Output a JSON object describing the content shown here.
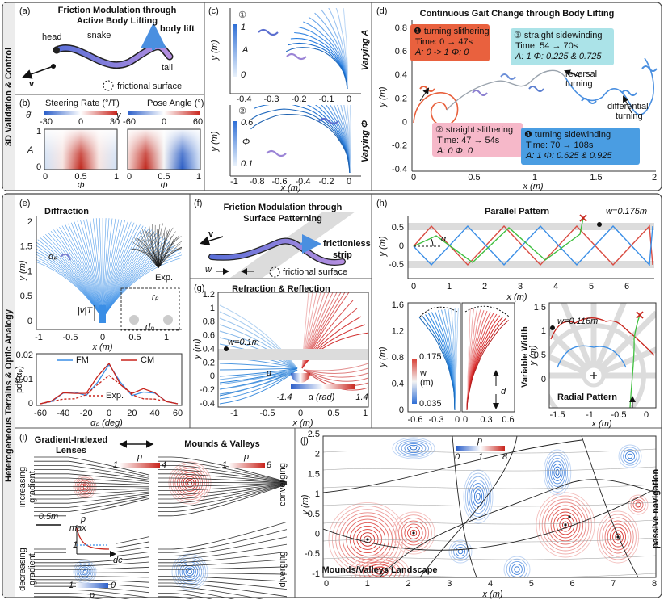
{
  "side_labels": [
    "3D Validation & Control",
    "Heterogeneous Terrains & Optic Analogy"
  ],
  "a": {
    "label": "(a)",
    "title": [
      "Friction Modulation through",
      "Active Body Lifting"
    ],
    "head": "head",
    "snake": "snake",
    "lift": "body lift",
    "tail": "tail",
    "v": "v",
    "surface": "frictional surface"
  },
  "b": {
    "label": "(b)",
    "titles": [
      "Steering Rate (°/T)",
      "Pose Angle (°)"
    ],
    "symbols": [
      "θ̇",
      "γ"
    ],
    "cbar1": [
      "-30",
      "0",
      "30"
    ],
    "cbar2": [
      "-60",
      "0",
      "60"
    ],
    "ylabel": "A",
    "yticks": [
      "1",
      "0"
    ],
    "xticks": [
      "0",
      "0.5",
      "1"
    ],
    "xlabel": "Φ"
  },
  "c": {
    "label": "(c)",
    "marks": [
      "①",
      "②"
    ],
    "cbar1": [
      "1",
      "A",
      "0"
    ],
    "cbar2": [
      "0.6",
      "Φ",
      "0.1"
    ],
    "captions": [
      "Varying A",
      "Varying Φ"
    ],
    "xticks1": [
      "-0.4",
      "-0.3",
      "-0.2",
      "-0.1",
      "0"
    ],
    "xticks2": [
      "-1",
      "-0.8",
      "-0.6",
      "-0.4",
      "-0.2",
      "0"
    ],
    "ylabel": "y (m)",
    "xlabel": "x (m)"
  },
  "d": {
    "label": "(d)",
    "title": "Continuous Gait Change through Body Lifting",
    "boxes": [
      {
        "title": "❶ turning slithering",
        "time": "Time: 0 → 47s",
        "params": "A: 0 -> 1   Φ: 0"
      },
      {
        "title": "② straight slithering",
        "time": "Time: 47 → 54s",
        "params": "A: 0   Φ: 0"
      },
      {
        "title": "③ straight sidewinding",
        "time": "Time: 54 → 70s",
        "params": "A: 1   Φ: 0.225 & 0.725"
      },
      {
        "title": "❹ turning sidewinding",
        "time": "Time: 70 → 108s",
        "params": "A: 1   Φ: 0.625 & 0.925"
      }
    ],
    "notes": [
      [
        "reversal",
        "turning"
      ],
      [
        "differential",
        "turning"
      ]
    ],
    "yticks": [
      "0.8",
      "0.6",
      "0.4",
      "0.2",
      "0",
      "-0.2",
      "-0.4"
    ],
    "xticks": [
      "0",
      "0.5",
      "1",
      "1.5",
      "2"
    ],
    "ylabel": "y (m)",
    "xlabel": "x (m)"
  },
  "e": {
    "label": "(e)",
    "title": "Diffraction",
    "exp": "Exp.",
    "ylabel": "y (m)",
    "yticks": [
      "2",
      "1.5",
      "1",
      "0.5",
      "0"
    ],
    "alpha": "αₚ",
    "rp": "rₚ",
    "dp": "dₚ",
    "vt": "|v|T",
    "xticks": [
      "-1",
      "-0.5",
      "0",
      "0.5",
      "1"
    ],
    "xlabel": "x (m)",
    "pdf_yticks": [
      "0.02",
      "0.01",
      "0"
    ],
    "pdf_ylabel": "pdf(αₚ)",
    "legend": [
      "FM",
      "CM",
      "Exp."
    ],
    "pdf_xticks": [
      "-60",
      "-40",
      "-20",
      "0",
      "20",
      "40",
      "60"
    ],
    "pdf_xlabel": "αₚ (deg)"
  },
  "f": {
    "label": "(f)",
    "title": [
      "Friction Modulation through",
      "Surface Patterning"
    ],
    "v": "v",
    "strip": [
      "frictionless",
      "strip"
    ],
    "w": "w",
    "surface": "frictional surface"
  },
  "g": {
    "label": "(g)",
    "title": "Refraction & Reflection",
    "ylabel": "y (m)",
    "yticks": [
      "1.2",
      "1",
      "0.8",
      "0.6",
      "0.4",
      "0.2",
      "0",
      "-0.2",
      "-0.4"
    ],
    "w": "w=0.1m",
    "alpha": "α",
    "cbar": [
      "-1.4",
      "α (rad)",
      "1.4"
    ],
    "xticks": [
      "-1",
      "-0.5",
      "0",
      "0.5",
      "1"
    ],
    "xlabel": "x (m)"
  },
  "h": {
    "label": "(h)",
    "title": "Parallel Pattern",
    "w": "w=0.175m",
    "ylabel": "y (m)",
    "yticks": [
      "0.5",
      "0",
      "-0.5"
    ],
    "alpha": "α",
    "xticks": [
      "0",
      "1",
      "2",
      "3",
      "4",
      "5",
      "6"
    ],
    "xlabel": "x (m)",
    "var_yticks": [
      "1.6",
      "1.2",
      "0.8",
      "0.4",
      "0"
    ],
    "cbar": [
      "0.175",
      "w",
      "(m)",
      "0.035"
    ],
    "var_xticks": [
      "-0.6",
      "-0.3",
      "0",
      "0",
      "0.3",
      "0.6"
    ],
    "d": "d",
    "var_title": "Variable Width",
    "w2": "w=0.116m",
    "rad_yticks": [
      "1.5",
      "1",
      "0.5",
      "0"
    ],
    "rad_xticks": [
      "-1.5",
      "-1",
      "-0.5",
      "0"
    ],
    "rad_title": "Radial Pattern"
  },
  "i": {
    "label": "(i)",
    "title": [
      "Gradient-Indexed",
      "Lenses"
    ],
    "title2": "Mounds & Valleys",
    "inc": [
      "increasing",
      "gradient"
    ],
    "dec": [
      "decreasing",
      "gradient"
    ],
    "cbar1": [
      "1",
      "p",
      "4"
    ],
    "cbar2": [
      "1",
      "p",
      "8"
    ],
    "cbar3": [
      "1",
      "0",
      "p"
    ],
    "converging": "converging",
    "diverging": "diverging",
    "inset": [
      "max",
      "p",
      "1",
      "dc"
    ],
    "scale": "0.5m"
  },
  "j": {
    "label": "(j)",
    "cbar": [
      "p",
      "0",
      "1",
      "8"
    ],
    "yticks": [
      "2.5",
      "2",
      "1.5",
      "1",
      "0.5",
      "0",
      "-0.5",
      "-1"
    ],
    "xticks": [
      "0",
      "1",
      "2",
      "3",
      "4",
      "5",
      "6",
      "7",
      "8"
    ],
    "xlabel": "x (m)",
    "ylabel": "y (m)",
    "title": "Mounds/Valleys Landscape",
    "note": "passive navigation"
  }
}
